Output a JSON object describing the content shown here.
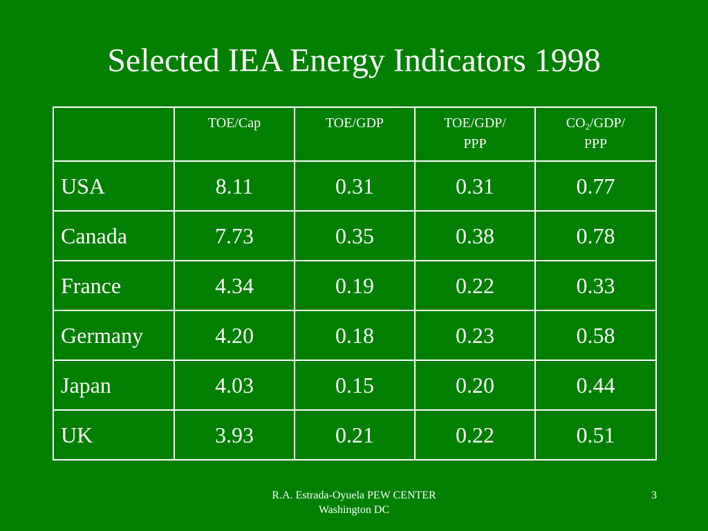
{
  "colors": {
    "background": "#007f00",
    "text": "#ffffff",
    "grid_lines": "#ffffff"
  },
  "slide": {
    "title": "Selected IEA Energy Indicators 1998",
    "number": "3"
  },
  "table": {
    "header": {
      "toe_cap": "TOE/Cap",
      "toe_gdp": "TOE/GDP",
      "toe_gdp_ppp_line1": "TOE/GDP/",
      "toe_gdp_ppp_line2": "PPP",
      "co2_gdp_ppp_prefix": "CO",
      "co2_gdp_ppp_sub": "2",
      "co2_gdp_ppp_suffix": "/GDP/",
      "co2_gdp_ppp_line2": "PPP"
    },
    "rows": [
      {
        "country": "USA",
        "toe_cap": "8.11",
        "toe_gdp": "0.31",
        "toe_gdp_ppp": "0.31",
        "co2_gdp_ppp": "0.77"
      },
      {
        "country": "Canada",
        "toe_cap": "7.73",
        "toe_gdp": "0.35",
        "toe_gdp_ppp": "0.38",
        "co2_gdp_ppp": "0.78"
      },
      {
        "country": "France",
        "toe_cap": "4.34",
        "toe_gdp": "0.19",
        "toe_gdp_ppp": "0.22",
        "co2_gdp_ppp": "0.33"
      },
      {
        "country": "Germany",
        "toe_cap": "4.20",
        "toe_gdp": "0.18",
        "toe_gdp_ppp": "0.23",
        "co2_gdp_ppp": "0.58"
      },
      {
        "country": "Japan",
        "toe_cap": "4.03",
        "toe_gdp": "0.15",
        "toe_gdp_ppp": "0.20",
        "co2_gdp_ppp": "0.44"
      },
      {
        "country": "UK",
        "toe_cap": "3.93",
        "toe_gdp": "0.21",
        "toe_gdp_ppp": "0.22",
        "co2_gdp_ppp": "0.51"
      }
    ]
  },
  "footer": {
    "line1": "R.A. Estrada-Oyuela PEW CENTER",
    "line2": "Washington DC"
  }
}
